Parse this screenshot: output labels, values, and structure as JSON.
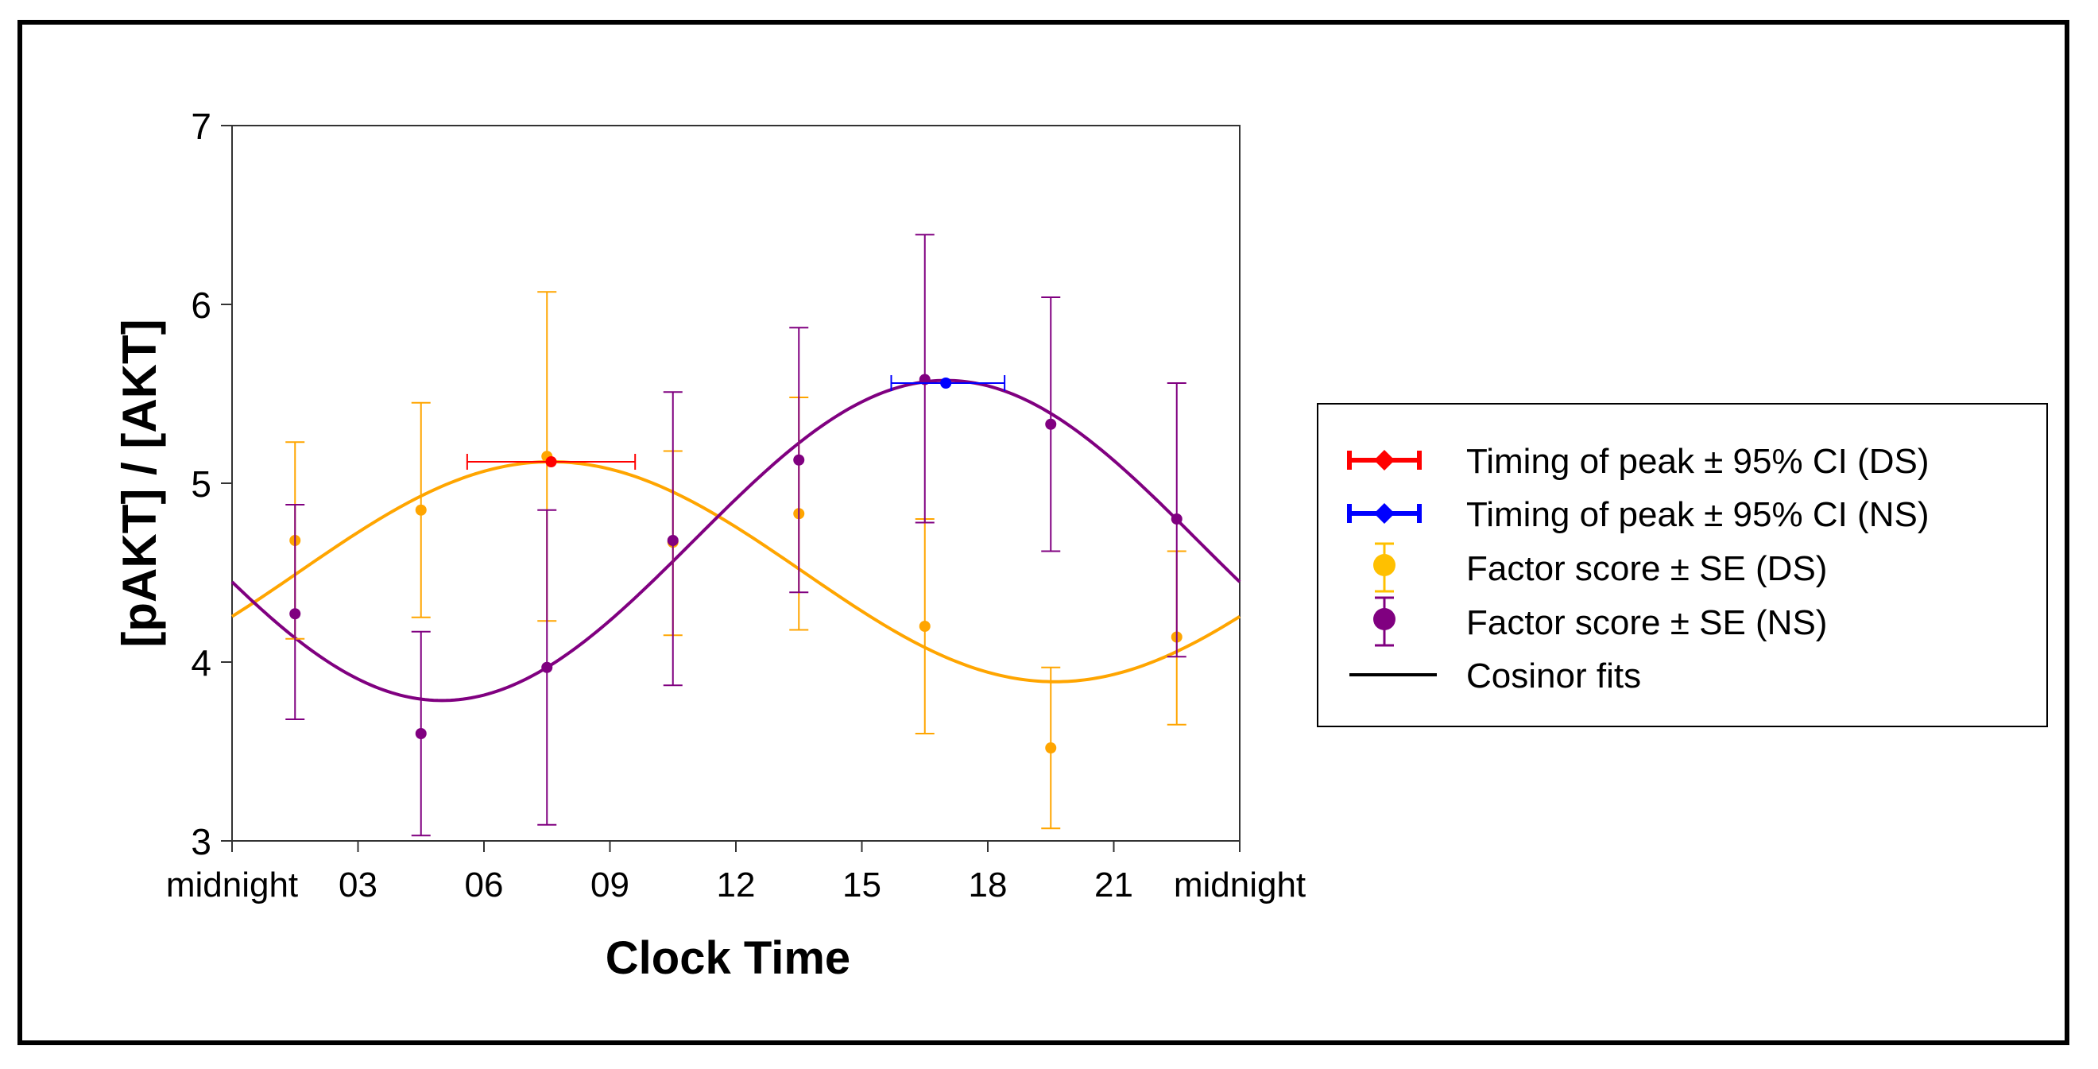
{
  "chart_data": {
    "type": "scatter",
    "title": "",
    "xlabel": "Clock Time",
    "ylabel": "[pAKT] / [AKT]",
    "xlim": [
      0,
      24
    ],
    "ylim": [
      3,
      7
    ],
    "x_ticks": [
      0,
      3,
      6,
      9,
      12,
      15,
      18,
      21,
      24
    ],
    "x_tick_labels": [
      "midnight",
      "03",
      "06",
      "09",
      "12",
      "15",
      "18",
      "21",
      "midnight"
    ],
    "y_ticks": [
      3,
      4,
      5,
      6,
      7
    ],
    "y_tick_labels": [
      "3",
      "4",
      "5",
      "6",
      "7"
    ],
    "legend_position": "right",
    "series": [
      {
        "name": "Factor score ± SE (DS)",
        "group": "DS",
        "color": "#FFA500",
        "x": [
          1.5,
          4.5,
          7.5,
          10.5,
          13.5,
          16.5,
          19.5,
          22.5
        ],
        "y": [
          4.68,
          4.85,
          5.15,
          4.67,
          4.83,
          4.2,
          3.52,
          4.14
        ],
        "se_low": [
          4.13,
          4.25,
          4.23,
          4.15,
          4.18,
          3.6,
          3.07,
          3.65
        ],
        "se_high": [
          5.23,
          5.45,
          6.07,
          5.18,
          5.48,
          4.8,
          3.97,
          4.62
        ]
      },
      {
        "name": "Factor score ± SE (NS)",
        "group": "NS",
        "color": "#800080",
        "x": [
          1.5,
          4.5,
          7.5,
          10.5,
          13.5,
          16.5,
          19.5,
          22.5
        ],
        "y": [
          4.27,
          3.6,
          3.97,
          4.68,
          5.13,
          5.58,
          5.33,
          4.8
        ],
        "se_low": [
          3.68,
          3.03,
          3.09,
          3.87,
          4.39,
          4.78,
          4.62,
          4.03
        ],
        "se_high": [
          4.88,
          4.17,
          4.85,
          5.51,
          5.87,
          6.39,
          6.04,
          5.56
        ]
      }
    ],
    "cosinor_fits": [
      {
        "name": "Cosinor fit (DS)",
        "color": "#FFA500",
        "mesor": 4.505,
        "amplitude": 0.615,
        "acrophase_hours": 7.6
      },
      {
        "name": "Cosinor fit (NS)",
        "color": "#800080",
        "mesor": 4.68,
        "amplitude": 0.895,
        "acrophase_hours": 17.0
      }
    ],
    "peak_timing": [
      {
        "name": "Timing of peak ± 95% CI (DS)",
        "color": "#FF0000",
        "x": 7.6,
        "y": 5.12,
        "ci_low": 5.6,
        "ci_high": 9.6
      },
      {
        "name": "Timing of peak ± 95% CI (NS)",
        "color": "#0000FF",
        "x": 17.0,
        "y": 5.56,
        "ci_low": 15.7,
        "ci_high": 18.4
      }
    ],
    "legend": [
      {
        "label": "Timing of peak ± 95% CI (DS)",
        "symbol": "diamond-hbar",
        "color": "#FF0000"
      },
      {
        "label": "Timing of peak ± 95% CI (NS)",
        "symbol": "diamond-hbar",
        "color": "#0000FF"
      },
      {
        "label": "Factor score ± SE (DS)",
        "symbol": "circle-vbar",
        "color": "#FFC000"
      },
      {
        "label": "Factor score ± SE (NS)",
        "symbol": "circle-vbar",
        "color": "#800080"
      },
      {
        "label": "Cosinor fits",
        "symbol": "line",
        "color": "#000000"
      }
    ]
  }
}
